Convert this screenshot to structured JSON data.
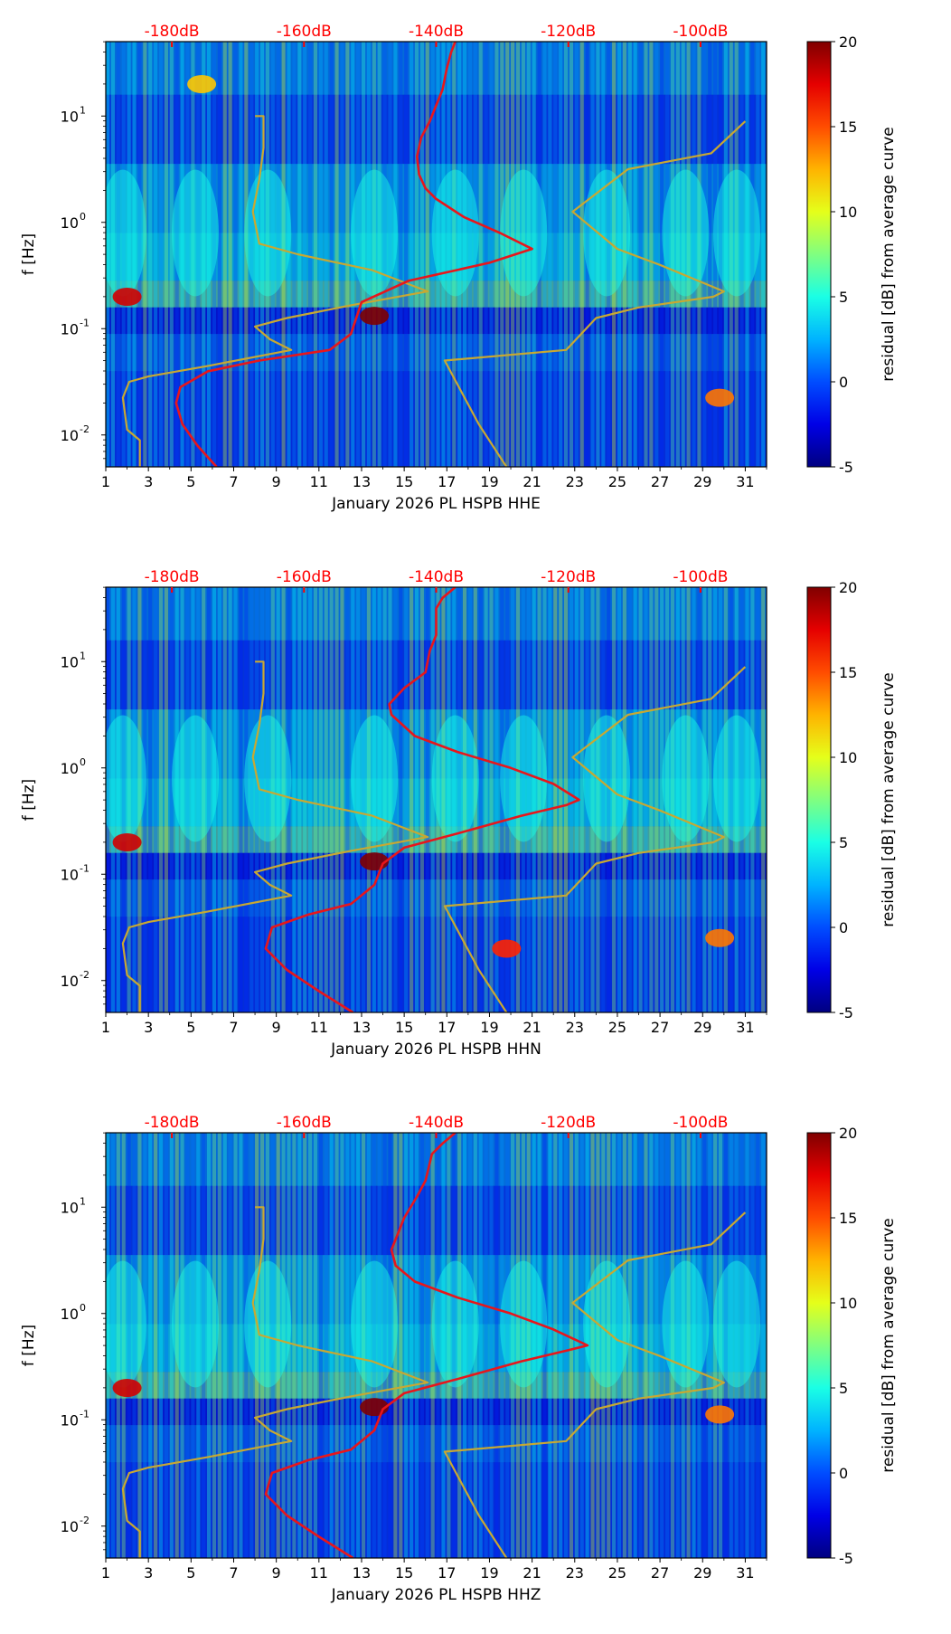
{
  "colors": {
    "red_curve": "#e8161b",
    "gold_curve": "#c8a832",
    "top_labels": "#ff0000",
    "axis": "#000000"
  },
  "chart_data": [
    {
      "type": "heatmap",
      "id": "hhe",
      "xlabel": "January 2026 PL HSPB  HHE",
      "ylabel": "f [Hz]",
      "xlim": [
        1,
        32
      ],
      "ylim_log10": [
        -2.3,
        1.7
      ],
      "x_ticks": [
        "1",
        "3",
        "5",
        "7",
        "9",
        "11",
        "13",
        "15",
        "17",
        "19",
        "21",
        "23",
        "25",
        "27",
        "29",
        "31"
      ],
      "y_ticks": [
        {
          "exp": -2,
          "label": "10"
        },
        {
          "exp": -1,
          "label": "10"
        },
        {
          "exp": 0,
          "label": "10"
        },
        {
          "exp": 1,
          "label": "10"
        }
      ],
      "top_axis_labels": [
        "-180dB",
        "-160dB",
        "-140dB",
        "-120dB",
        "-100dB"
      ],
      "top_axis_positions_day": [
        4.1,
        10.3,
        16.5,
        22.7,
        28.9
      ],
      "colorbar": {
        "label": "residual [dB] from average curve",
        "min": -5,
        "max": 20,
        "ticks": [
          -5,
          0,
          5,
          10,
          15,
          20
        ]
      },
      "red_curve": [
        [
          6.2,
          -2.3
        ],
        [
          5.3,
          -2.1
        ],
        [
          4.6,
          -1.9
        ],
        [
          4.3,
          -1.7
        ],
        [
          4.5,
          -1.55
        ],
        [
          5.8,
          -1.4
        ],
        [
          8.2,
          -1.3
        ],
        [
          11.5,
          -1.2
        ],
        [
          12.5,
          -1.05
        ],
        [
          13.0,
          -0.75
        ],
        [
          15.2,
          -0.55
        ],
        [
          19.0,
          -0.38
        ],
        [
          21.0,
          -0.25
        ],
        [
          19.5,
          -0.1
        ],
        [
          17.8,
          0.05
        ],
        [
          16.5,
          0.22
        ],
        [
          16.0,
          0.32
        ],
        [
          15.7,
          0.45
        ],
        [
          15.6,
          0.62
        ],
        [
          15.8,
          0.8
        ],
        [
          16.2,
          0.95
        ],
        [
          16.5,
          1.1
        ],
        [
          16.8,
          1.25
        ],
        [
          17.0,
          1.45
        ],
        [
          17.2,
          1.6
        ],
        [
          17.4,
          1.7
        ]
      ],
      "gold_curve": [
        [
          2.6,
          -2.3
        ],
        [
          2.6,
          -2.05
        ],
        [
          2.0,
          -1.95
        ],
        [
          1.8,
          -1.65
        ],
        [
          2.1,
          -1.5
        ],
        [
          3.0,
          -1.45
        ],
        [
          5.8,
          -1.35
        ],
        [
          9.7,
          -1.2
        ],
        [
          8.7,
          -1.1
        ],
        [
          8.0,
          -0.98
        ],
        [
          9.5,
          -0.9
        ],
        [
          12.5,
          -0.78
        ],
        [
          16.1,
          -0.65
        ],
        [
          13.5,
          -0.45
        ],
        [
          10.0,
          -0.3
        ],
        [
          8.2,
          -0.2
        ],
        [
          7.9,
          0.1
        ],
        [
          8.2,
          0.4
        ],
        [
          8.4,
          0.7
        ],
        [
          8.4,
          1.0
        ],
        [
          8.0,
          1.0
        ]
      ],
      "gold_curve_b": [
        [
          19.8,
          -2.3
        ],
        [
          18.5,
          -1.9
        ],
        [
          16.9,
          -1.3
        ],
        [
          22.6,
          -1.2
        ],
        [
          24.0,
          -0.9
        ],
        [
          26.0,
          -0.8
        ],
        [
          29.5,
          -0.7
        ],
        [
          30.0,
          -0.65
        ],
        [
          27.0,
          -0.4
        ],
        [
          25.0,
          -0.25
        ],
        [
          22.9,
          0.1
        ],
        [
          25.5,
          0.5
        ],
        [
          29.4,
          0.65
        ],
        [
          31.0,
          0.95
        ]
      ],
      "residual_hotspots": [
        {
          "day": 2.0,
          "freq_log10": -0.7,
          "value": 18
        },
        {
          "day": 13.6,
          "freq_log10": -0.88,
          "value": 20
        },
        {
          "day": 29.8,
          "freq_log10": -1.65,
          "value": 14
        },
        {
          "day": 5.5,
          "freq_log10": 1.3,
          "value": 12
        }
      ]
    },
    {
      "type": "heatmap",
      "id": "hhn",
      "xlabel": "January 2026 PL HSPB  HHN",
      "ylabel": "f [Hz]",
      "xlim": [
        1,
        32
      ],
      "ylim_log10": [
        -2.3,
        1.7
      ],
      "x_ticks": [
        "1",
        "3",
        "5",
        "7",
        "9",
        "11",
        "13",
        "15",
        "17",
        "19",
        "21",
        "23",
        "25",
        "27",
        "29",
        "31"
      ],
      "y_ticks": [
        {
          "exp": -2,
          "label": "10"
        },
        {
          "exp": -1,
          "label": "10"
        },
        {
          "exp": 0,
          "label": "10"
        },
        {
          "exp": 1,
          "label": "10"
        }
      ],
      "top_axis_labels": [
        "-180dB",
        "-160dB",
        "-140dB",
        "-120dB",
        "-100dB"
      ],
      "top_axis_positions_day": [
        4.1,
        10.3,
        16.5,
        22.7,
        28.9
      ],
      "colorbar": {
        "label": "residual [dB] from average curve",
        "min": -5,
        "max": 20,
        "ticks": [
          -5,
          0,
          5,
          10,
          15,
          20
        ]
      },
      "red_curve": [
        [
          12.6,
          -2.3
        ],
        [
          11.0,
          -2.1
        ],
        [
          9.5,
          -1.9
        ],
        [
          8.5,
          -1.7
        ],
        [
          8.8,
          -1.5
        ],
        [
          10.5,
          -1.38
        ],
        [
          12.5,
          -1.28
        ],
        [
          13.6,
          -1.1
        ],
        [
          14.0,
          -0.9
        ],
        [
          15.0,
          -0.75
        ],
        [
          17.8,
          -0.6
        ],
        [
          20.5,
          -0.45
        ],
        [
          22.6,
          -0.35
        ],
        [
          23.2,
          -0.3
        ],
        [
          22.0,
          -0.15
        ],
        [
          20.0,
          0.0
        ],
        [
          17.5,
          0.15
        ],
        [
          15.5,
          0.3
        ],
        [
          14.4,
          0.5
        ],
        [
          14.3,
          0.6
        ],
        [
          15.0,
          0.75
        ],
        [
          16.0,
          0.9
        ],
        [
          16.2,
          1.1
        ],
        [
          16.5,
          1.25
        ],
        [
          16.5,
          1.5
        ],
        [
          16.8,
          1.6
        ],
        [
          17.4,
          1.7
        ]
      ],
      "gold_curve": [
        [
          2.6,
          -2.3
        ],
        [
          2.6,
          -2.05
        ],
        [
          2.0,
          -1.95
        ],
        [
          1.8,
          -1.65
        ],
        [
          2.1,
          -1.5
        ],
        [
          3.0,
          -1.45
        ],
        [
          5.8,
          -1.35
        ],
        [
          9.7,
          -1.2
        ],
        [
          8.7,
          -1.1
        ],
        [
          8.0,
          -0.98
        ],
        [
          9.5,
          -0.9
        ],
        [
          12.5,
          -0.78
        ],
        [
          16.1,
          -0.65
        ],
        [
          13.5,
          -0.45
        ],
        [
          10.0,
          -0.3
        ],
        [
          8.2,
          -0.2
        ],
        [
          7.9,
          0.1
        ],
        [
          8.2,
          0.4
        ],
        [
          8.4,
          0.7
        ],
        [
          8.4,
          1.0
        ],
        [
          8.0,
          1.0
        ]
      ],
      "gold_curve_b": [
        [
          19.8,
          -2.3
        ],
        [
          18.5,
          -1.9
        ],
        [
          16.9,
          -1.3
        ],
        [
          22.6,
          -1.2
        ],
        [
          24.0,
          -0.9
        ],
        [
          26.0,
          -0.8
        ],
        [
          29.5,
          -0.7
        ],
        [
          30.0,
          -0.65
        ],
        [
          27.0,
          -0.4
        ],
        [
          25.0,
          -0.25
        ],
        [
          22.9,
          0.1
        ],
        [
          25.5,
          0.5
        ],
        [
          29.4,
          0.65
        ],
        [
          31.0,
          0.95
        ]
      ],
      "residual_hotspots": [
        {
          "day": 2.0,
          "freq_log10": -0.7,
          "value": 18
        },
        {
          "day": 13.6,
          "freq_log10": -0.88,
          "value": 20
        },
        {
          "day": 29.8,
          "freq_log10": -1.6,
          "value": 14
        },
        {
          "day": 19.8,
          "freq_log10": -1.7,
          "value": 16
        }
      ]
    },
    {
      "type": "heatmap",
      "id": "hhz",
      "xlabel": "January 2026 PL HSPB  HHZ",
      "ylabel": "f [Hz]",
      "xlim": [
        1,
        32
      ],
      "ylim_log10": [
        -2.3,
        1.7
      ],
      "x_ticks": [
        "1",
        "3",
        "5",
        "7",
        "9",
        "11",
        "13",
        "15",
        "17",
        "19",
        "21",
        "23",
        "25",
        "27",
        "29",
        "31"
      ],
      "y_ticks": [
        {
          "exp": -2,
          "label": "10"
        },
        {
          "exp": -1,
          "label": "10"
        },
        {
          "exp": 0,
          "label": "10"
        },
        {
          "exp": 1,
          "label": "10"
        }
      ],
      "top_axis_labels": [
        "-180dB",
        "-160dB",
        "-140dB",
        "-120dB",
        "-100dB"
      ],
      "top_axis_positions_day": [
        4.1,
        10.3,
        16.5,
        22.7,
        28.9
      ],
      "colorbar": {
        "label": "residual [dB] from average curve",
        "min": -5,
        "max": 20,
        "ticks": [
          -5,
          0,
          5,
          10,
          15,
          20
        ]
      },
      "red_curve": [
        [
          12.6,
          -2.3
        ],
        [
          11.0,
          -2.1
        ],
        [
          9.5,
          -1.9
        ],
        [
          8.5,
          -1.7
        ],
        [
          8.8,
          -1.5
        ],
        [
          10.5,
          -1.38
        ],
        [
          12.5,
          -1.28
        ],
        [
          13.6,
          -1.1
        ],
        [
          14.0,
          -0.9
        ],
        [
          15.0,
          -0.75
        ],
        [
          17.8,
          -0.6
        ],
        [
          20.5,
          -0.45
        ],
        [
          22.6,
          -0.35
        ],
        [
          23.6,
          -0.3
        ],
        [
          22.0,
          -0.15
        ],
        [
          20.0,
          0.0
        ],
        [
          17.5,
          0.15
        ],
        [
          15.5,
          0.3
        ],
        [
          14.6,
          0.45
        ],
        [
          14.4,
          0.6
        ],
        [
          14.7,
          0.75
        ],
        [
          15.0,
          0.9
        ],
        [
          15.6,
          1.1
        ],
        [
          16.0,
          1.25
        ],
        [
          16.3,
          1.5
        ],
        [
          16.8,
          1.6
        ],
        [
          17.4,
          1.7
        ]
      ],
      "gold_curve": [
        [
          2.6,
          -2.3
        ],
        [
          2.6,
          -2.05
        ],
        [
          2.0,
          -1.95
        ],
        [
          1.8,
          -1.65
        ],
        [
          2.1,
          -1.5
        ],
        [
          3.0,
          -1.45
        ],
        [
          5.8,
          -1.35
        ],
        [
          9.7,
          -1.2
        ],
        [
          8.7,
          -1.1
        ],
        [
          8.0,
          -0.98
        ],
        [
          9.5,
          -0.9
        ],
        [
          12.5,
          -0.78
        ],
        [
          16.1,
          -0.65
        ],
        [
          13.5,
          -0.45
        ],
        [
          10.0,
          -0.3
        ],
        [
          8.2,
          -0.2
        ],
        [
          7.9,
          0.1
        ],
        [
          8.2,
          0.4
        ],
        [
          8.4,
          0.7
        ],
        [
          8.4,
          1.0
        ],
        [
          8.0,
          1.0
        ]
      ],
      "gold_curve_b": [
        [
          19.8,
          -2.3
        ],
        [
          18.5,
          -1.9
        ],
        [
          16.9,
          -1.3
        ],
        [
          22.6,
          -1.2
        ],
        [
          24.0,
          -0.9
        ],
        [
          26.0,
          -0.8
        ],
        [
          29.5,
          -0.7
        ],
        [
          30.0,
          -0.65
        ],
        [
          27.0,
          -0.4
        ],
        [
          25.0,
          -0.25
        ],
        [
          22.9,
          0.1
        ],
        [
          25.5,
          0.5
        ],
        [
          29.4,
          0.65
        ],
        [
          31.0,
          0.95
        ]
      ],
      "residual_hotspots": [
        {
          "day": 2.0,
          "freq_log10": -0.7,
          "value": 18
        },
        {
          "day": 13.6,
          "freq_log10": -0.88,
          "value": 20
        },
        {
          "day": 29.8,
          "freq_log10": -0.95,
          "value": 14
        }
      ]
    }
  ]
}
